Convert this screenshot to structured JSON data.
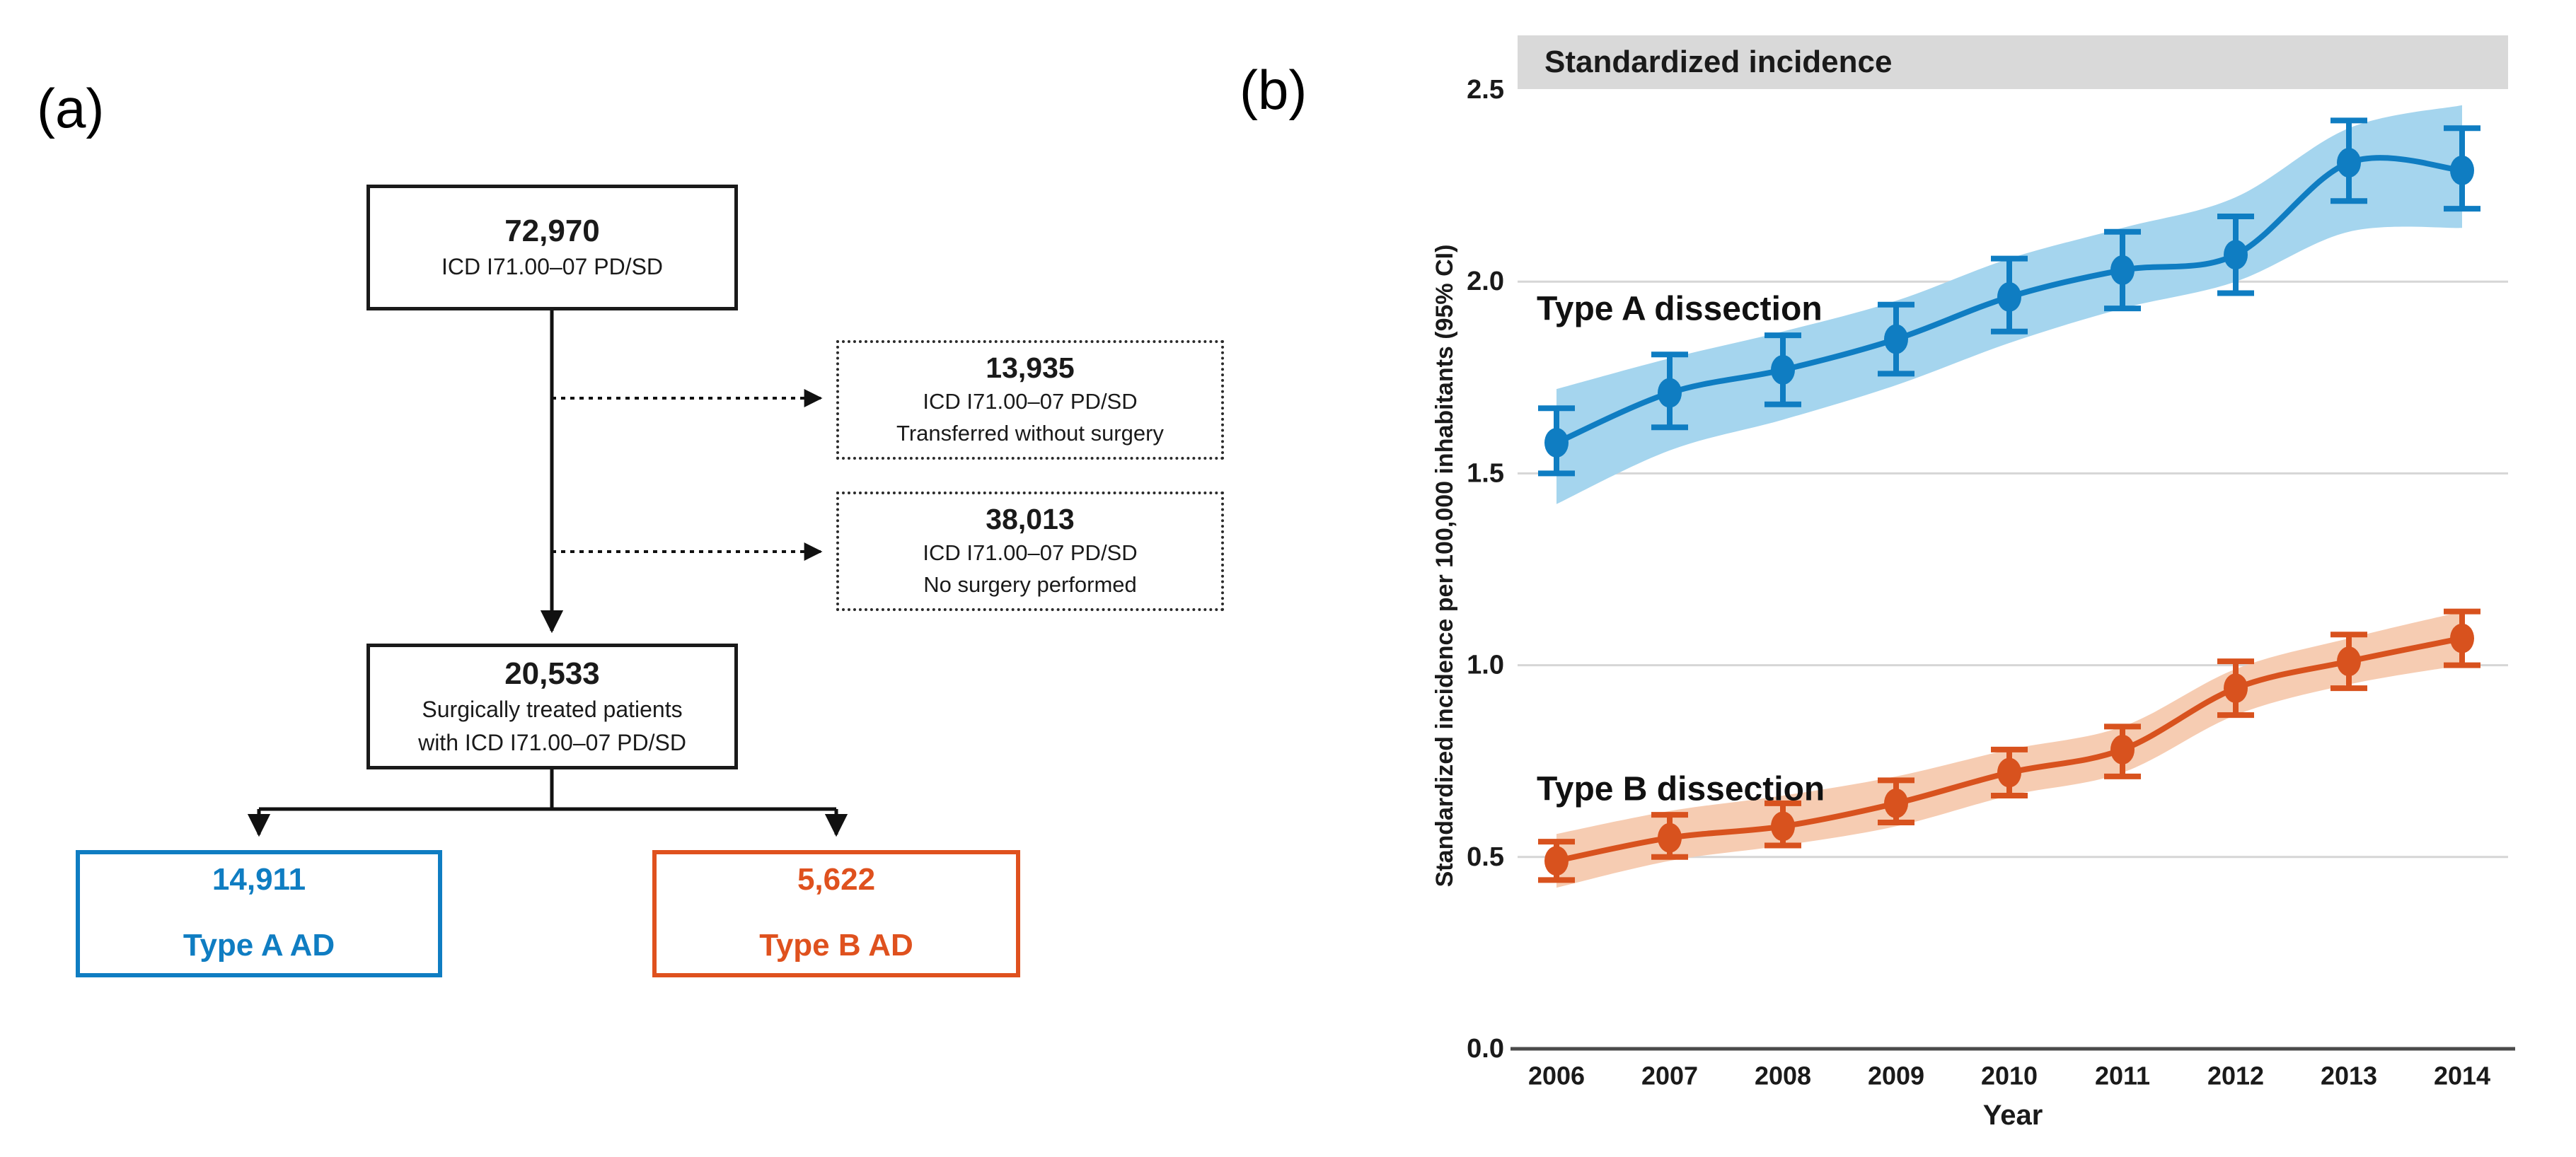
{
  "panels": {
    "a": {
      "label": "(a)"
    },
    "b": {
      "label": "(b)"
    }
  },
  "flowchart": {
    "total_box": {
      "number": "72,970",
      "line1": "ICD I71.00–07 PD/SD"
    },
    "transferred_box": {
      "number": "13,935",
      "line1": "ICD I71.00–07 PD/SD",
      "line2": "Transferred without surgery"
    },
    "no_surgery_box": {
      "number": "38,013",
      "line1": "ICD I71.00–07 PD/SD",
      "line2": "No surgery performed"
    },
    "surgical_box": {
      "number": "20,533",
      "line1": "Surgically treated patients",
      "line2": "with ICD I71.00–07 PD/SD"
    },
    "type_a_box": {
      "number": "14,911",
      "label": "Type A AD"
    },
    "type_b_box": {
      "number": "5,622",
      "label": "Type B AD"
    }
  },
  "colors": {
    "type_a": "#0F7DC2",
    "type_b": "#DF511E",
    "title_band_bg": "#D9D9D9",
    "gridline": "#D6D6D6",
    "axis": "#4a4a4a"
  },
  "chart_data": {
    "type": "line",
    "title": "Standardized incidence",
    "xlabel": "Year",
    "ylabel": "Standardized incidence per 100,000 inhabitants (95% CI)",
    "x": [
      2006,
      2007,
      2008,
      2009,
      2010,
      2011,
      2012,
      2013,
      2014
    ],
    "ylim": [
      0.0,
      2.5
    ],
    "yticks": [
      "0.0",
      "0.5",
      "1.0",
      "1.5",
      "2.0",
      "2.5"
    ],
    "grid": "horizontal",
    "legend_position": "inline-labels",
    "series": [
      {
        "name": "Type A dissection",
        "color": "#0F7DC2",
        "band_color": "#A5D5EE",
        "values": [
          1.58,
          1.71,
          1.77,
          1.85,
          1.96,
          2.03,
          2.07,
          2.31,
          2.29
        ],
        "ci_low": [
          1.5,
          1.62,
          1.68,
          1.76,
          1.87,
          1.93,
          1.97,
          2.21,
          2.19
        ],
        "ci_high": [
          1.67,
          1.81,
          1.86,
          1.94,
          2.06,
          2.13,
          2.17,
          2.42,
          2.4
        ],
        "band_low": [
          1.42,
          1.56,
          1.64,
          1.73,
          1.84,
          1.93,
          2.0,
          2.13,
          2.14
        ],
        "band_high": [
          1.72,
          1.8,
          1.87,
          1.95,
          2.06,
          2.14,
          2.22,
          2.4,
          2.46
        ]
      },
      {
        "name": "Type B dissection",
        "color": "#D8521E",
        "band_color": "#F6CCB2",
        "values": [
          0.49,
          0.55,
          0.58,
          0.64,
          0.72,
          0.78,
          0.94,
          1.01,
          1.07
        ],
        "ci_low": [
          0.44,
          0.5,
          0.53,
          0.59,
          0.66,
          0.71,
          0.87,
          0.94,
          1.0
        ],
        "ci_high": [
          0.54,
          0.61,
          0.64,
          0.7,
          0.78,
          0.84,
          1.01,
          1.08,
          1.14
        ],
        "band_low": [
          0.42,
          0.49,
          0.53,
          0.58,
          0.66,
          0.72,
          0.87,
          0.95,
          1.0
        ],
        "band_high": [
          0.56,
          0.62,
          0.66,
          0.71,
          0.78,
          0.84,
          0.99,
          1.07,
          1.14
        ]
      }
    ]
  }
}
